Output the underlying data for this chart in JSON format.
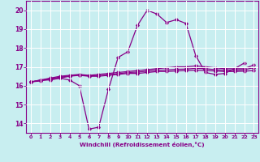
{
  "xlabel": "Windchill (Refroidissement éolien,°C)",
  "background_color": "#c8eef0",
  "line_color": "#880088",
  "grid_color": "#ffffff",
  "xlim": [
    -0.5,
    23.5
  ],
  "ylim": [
    13.5,
    20.5
  ],
  "xticks": [
    0,
    1,
    2,
    3,
    4,
    5,
    6,
    7,
    8,
    9,
    10,
    11,
    12,
    13,
    14,
    15,
    16,
    17,
    18,
    19,
    20,
    21,
    22,
    23
  ],
  "yticks": [
    14,
    15,
    16,
    17,
    18,
    19,
    20
  ],
  "line1_x": [
    0,
    1,
    2,
    3,
    4,
    5,
    6,
    7,
    8,
    9,
    10,
    11,
    12,
    13,
    14,
    15,
    16,
    17,
    18,
    19,
    20,
    21,
    22
  ],
  "line1_y": [
    16.2,
    16.3,
    16.3,
    16.4,
    16.3,
    16.0,
    13.7,
    13.8,
    15.8,
    17.5,
    17.8,
    19.2,
    20.0,
    19.8,
    19.35,
    19.5,
    19.3,
    17.6,
    16.7,
    16.6,
    16.65,
    16.9,
    17.2
  ],
  "line2_x": [
    0,
    1,
    2,
    3,
    4,
    5,
    6,
    7,
    8,
    9,
    10,
    11,
    12,
    13,
    14,
    15,
    16,
    17,
    18,
    19,
    20,
    21,
    22,
    23
  ],
  "line2_y": [
    16.2,
    16.3,
    16.4,
    16.5,
    16.55,
    16.6,
    16.55,
    16.6,
    16.65,
    16.7,
    16.75,
    16.8,
    16.85,
    16.9,
    16.95,
    17.0,
    17.0,
    17.05,
    17.0,
    16.95,
    16.9,
    16.9,
    16.9,
    17.1
  ],
  "line3_x": [
    0,
    1,
    2,
    3,
    4,
    5,
    6,
    7,
    8,
    9,
    10,
    11,
    12,
    13,
    14,
    15,
    16,
    17,
    18,
    19,
    20,
    21,
    22,
    23
  ],
  "line3_y": [
    16.2,
    16.25,
    16.35,
    16.4,
    16.5,
    16.55,
    16.5,
    16.5,
    16.55,
    16.6,
    16.65,
    16.65,
    16.7,
    16.75,
    16.75,
    16.78,
    16.8,
    16.82,
    16.8,
    16.78,
    16.75,
    16.75,
    16.77,
    16.8
  ],
  "line4_x": [
    0,
    1,
    2,
    3,
    4,
    5,
    6,
    7,
    8,
    9,
    10,
    11,
    12,
    13,
    14,
    15,
    16,
    17,
    18,
    19,
    20,
    21,
    22,
    23
  ],
  "line4_y": [
    16.2,
    16.28,
    16.38,
    16.45,
    16.52,
    16.57,
    16.52,
    16.53,
    16.58,
    16.63,
    16.7,
    16.72,
    16.77,
    16.82,
    16.83,
    16.87,
    16.88,
    16.92,
    16.9,
    16.85,
    16.82,
    16.82,
    16.85,
    16.95
  ]
}
